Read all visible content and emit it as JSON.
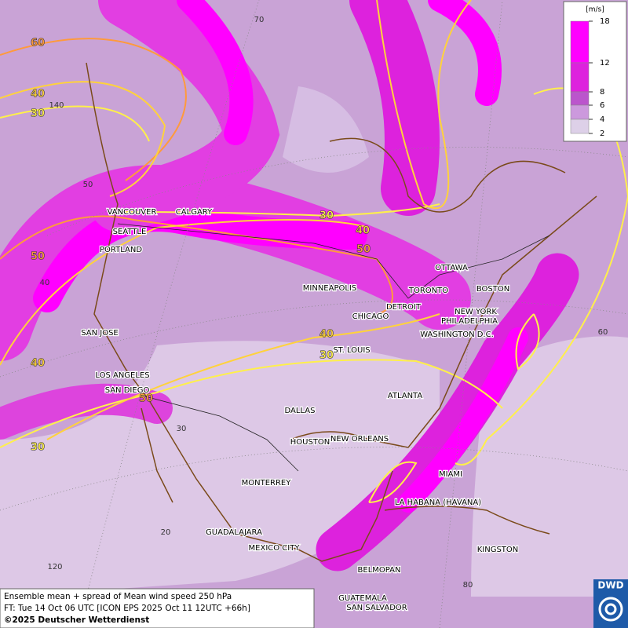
{
  "map": {
    "cities": [
      "VANCOUVER",
      "CALGARY",
      "SEATTLE",
      "PORTLAND",
      "MINNEAPOLIS",
      "OTTAWA",
      "TORONTO",
      "BOSTON",
      "DETROIT",
      "NEW YORK",
      "CHICAGO",
      "PHILADELPHIA",
      "WASHINGTON D.C.",
      "SAN JOSE",
      "ST. LOUIS",
      "LOS ANGELES",
      "SAN DIEGO",
      "ATLANTA",
      "DALLAS",
      "HOUSTON",
      "NEW ORLEANS",
      "MIAMI",
      "MONTERREY",
      "LA HABANA (HAVANA)",
      "GUADALAJARA",
      "MEXICO CITY",
      "KINGSTON",
      "BELMOPAN",
      "GUATEMALA",
      "SAN SALVADOR"
    ],
    "contour_labels": [
      60,
      40,
      30,
      50,
      40,
      30,
      30,
      40,
      50,
      40,
      30,
      50
    ],
    "grid_labels": [
      70,
      140,
      50,
      40,
      30,
      20,
      120,
      80,
      60
    ],
    "legend": {
      "unit": "[m/s]",
      "ticks": [
        18,
        12,
        8,
        6,
        4,
        2
      ],
      "colors": [
        "#ff00ff",
        "#dd22dd",
        "#bb55cc",
        "#cc99dd",
        "#ddd0e8"
      ]
    },
    "footer": {
      "line1": "Ensemble mean + spread of Mean wind speed 250 hPa",
      "line2": "FT: Tue 14 Oct 06 UTC [ICON EPS 2025 Oct 11 12UTC +66h]",
      "line3": "©2025 Deutscher Wetterdienst"
    },
    "logo": "DWD"
  }
}
